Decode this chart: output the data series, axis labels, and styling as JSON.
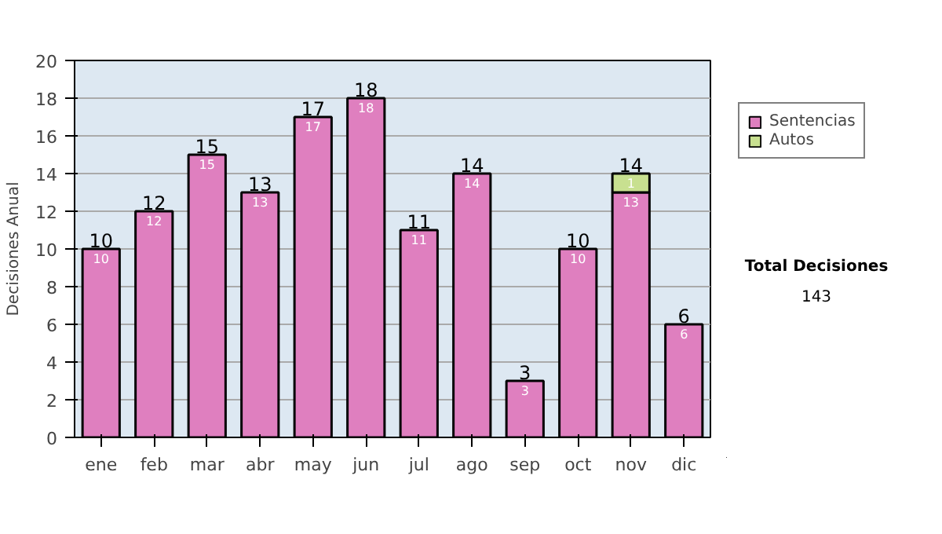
{
  "chart_data": {
    "type": "bar",
    "stacked": true,
    "ylabel": "Decisiones Anual",
    "categories": [
      "ene",
      "feb",
      "mar",
      "abr",
      "may",
      "jun",
      "jul",
      "ago",
      "sep",
      "oct",
      "nov",
      "dic"
    ],
    "series": [
      {
        "name": "Sentencias",
        "color": "#df7fbf",
        "values": [
          10,
          12,
          15,
          13,
          17,
          18,
          11,
          14,
          3,
          10,
          13,
          6
        ]
      },
      {
        "name": "Autos",
        "color": "#c8e090",
        "values": [
          null,
          null,
          null,
          null,
          null,
          null,
          null,
          null,
          null,
          null,
          1,
          null
        ]
      }
    ],
    "ylim": [
      0,
      20
    ],
    "yticks": [
      0,
      2,
      4,
      6,
      8,
      10,
      12,
      14,
      16,
      18,
      20
    ],
    "grid": "y",
    "legend": "right",
    "data_labels": true,
    "totals": [
      "10",
      "12",
      "15",
      "13",
      "17",
      "18",
      "11",
      "14",
      "3",
      "10",
      "14",
      "6"
    ],
    "annotations": [
      "Total Decisiones",
      "143"
    ]
  }
}
